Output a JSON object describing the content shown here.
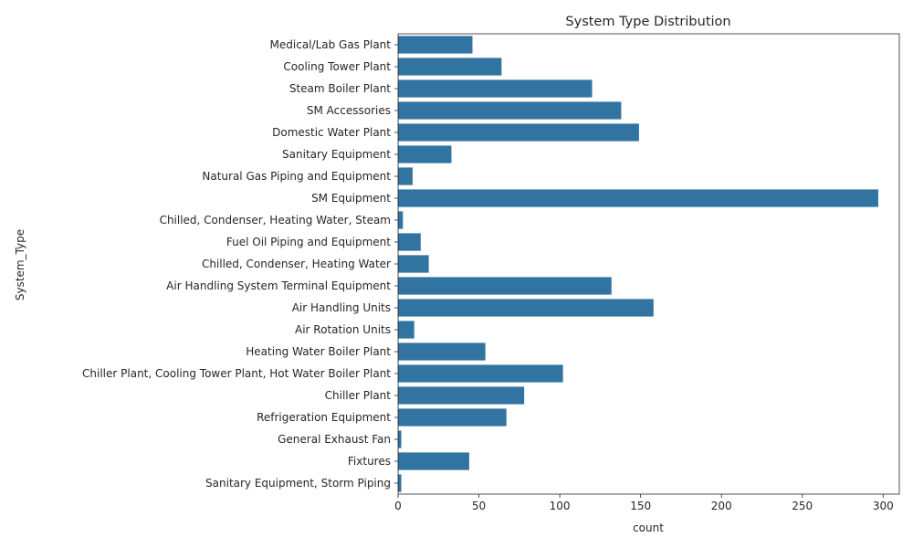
{
  "chart_data": {
    "type": "bar",
    "orientation": "horizontal",
    "title": "System Type Distribution",
    "xlabel": "count",
    "ylabel": "System_Type",
    "xlim": [
      0,
      310
    ],
    "xticks": [
      0,
      50,
      100,
      150,
      200,
      250,
      300
    ],
    "grid": false,
    "bar_color": "#3274a1",
    "categories": [
      "Medical/Lab Gas Plant",
      "Cooling Tower Plant",
      "Steam Boiler Plant",
      "SM Accessories",
      "Domestic Water Plant",
      "Sanitary Equipment",
      "Natural Gas Piping and Equipment",
      "SM Equipment",
      "Chilled, Condenser, Heating Water, Steam",
      "Fuel Oil Piping and Equipment",
      "Chilled, Condenser, Heating Water",
      "Air Handling System Terminal Equipment",
      "Air Handling Units",
      "Air Rotation Units",
      "Heating Water Boiler Plant",
      "Chiller Plant, Cooling Tower Plant, Hot Water Boiler Plant",
      "Chiller Plant",
      "Refrigeration Equipment",
      "General Exhaust Fan",
      "Fixtures",
      "Sanitary Equipment, Storm Piping"
    ],
    "values": [
      46,
      64,
      120,
      138,
      149,
      33,
      9,
      297,
      3,
      14,
      19,
      132,
      158,
      10,
      54,
      102,
      78,
      67,
      2,
      44,
      2
    ]
  }
}
